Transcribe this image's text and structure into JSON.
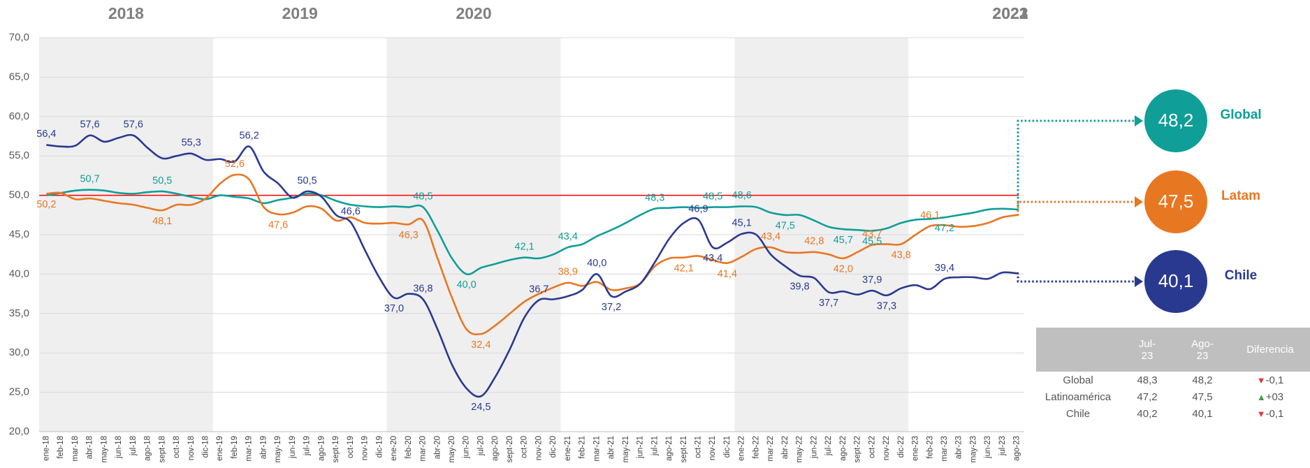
{
  "chart_data": {
    "type": "line",
    "years": [
      "2018",
      "2019",
      "2020",
      "2021",
      "2022",
      "2023"
    ],
    "categories": [
      "ene-18",
      "feb-18",
      "mar-18",
      "abr-18",
      "may-18",
      "jun-18",
      "jul-18",
      "ago-18",
      "sept-18",
      "oct-18",
      "nov-18",
      "dic-18",
      "ene-19",
      "feb-19",
      "mar-19",
      "abr-19",
      "may-19",
      "jun-19",
      "jul-19",
      "ago-19",
      "sept-19",
      "oct-19",
      "nov-19",
      "dic-19",
      "ene-20",
      "feb-20",
      "mar-20",
      "abr-20",
      "may-20",
      "jun-20",
      "jul-20",
      "ago-20",
      "sept-20",
      "oct-20",
      "nov-20",
      "dic-20",
      "ene-21",
      "feb-21",
      "mar-21",
      "abr-21",
      "may-21",
      "jun-21",
      "jul-21",
      "ago-21",
      "sept-21",
      "oct-21",
      "nov-21",
      "dic-21",
      "ene-22",
      "feb-22",
      "mar-22",
      "abr-22",
      "may-22",
      "jun-22",
      "jul-22",
      "ago-22",
      "sept-22",
      "oct-22",
      "nov-22",
      "dic-22",
      "ene-23",
      "feb-23",
      "mar-23",
      "abr-23",
      "may-23",
      "jun-23",
      "jul-23",
      "ago-23"
    ],
    "series": [
      {
        "name": "Global",
        "color": "#0f9e98",
        "values": [
          50.0,
          50.3,
          50.6,
          50.7,
          50.6,
          50.3,
          50.2,
          50.4,
          50.5,
          50.2,
          49.8,
          49.5,
          50.0,
          49.8,
          49.6,
          49.0,
          49.4,
          49.7,
          50.2,
          50.0,
          49.3,
          48.8,
          48.6,
          48.5,
          48.6,
          48.5,
          48.5,
          45.5,
          42.0,
          40.0,
          40.8,
          41.3,
          41.8,
          42.1,
          42.0,
          42.5,
          43.4,
          43.8,
          44.8,
          45.6,
          46.5,
          47.5,
          48.3,
          48.4,
          48.5,
          48.4,
          48.5,
          48.5,
          48.6,
          48.5,
          47.8,
          47.5,
          47.5,
          46.8,
          46.0,
          45.7,
          45.6,
          45.5,
          45.8,
          46.5,
          46.9,
          47.0,
          47.2,
          47.5,
          47.8,
          48.2,
          48.3,
          48.2
        ],
        "value_labels": [
          null,
          null,
          null,
          "50,7",
          null,
          null,
          null,
          null,
          "50,5",
          null,
          null,
          null,
          null,
          null,
          null,
          null,
          null,
          null,
          null,
          null,
          null,
          null,
          null,
          null,
          null,
          null,
          "48,5",
          null,
          null,
          "40,0",
          null,
          null,
          null,
          "42,1",
          null,
          null,
          "43,4",
          null,
          null,
          null,
          null,
          null,
          "48,3",
          null,
          null,
          null,
          "48,5",
          null,
          "48,6",
          null,
          null,
          "47,5",
          null,
          null,
          null,
          "45,7",
          null,
          "45,5",
          null,
          null,
          null,
          null,
          "47,2",
          null,
          null,
          null,
          null,
          null
        ]
      },
      {
        "name": "Latam",
        "color": "#e87722",
        "values": [
          50.2,
          50.3,
          49.5,
          49.6,
          49.3,
          49.0,
          48.8,
          48.4,
          48.1,
          48.8,
          48.8,
          49.6,
          51.5,
          52.6,
          52.0,
          48.5,
          47.6,
          47.8,
          48.6,
          48.3,
          46.8,
          47.2,
          46.5,
          46.4,
          46.5,
          46.3,
          46.8,
          42.0,
          37.0,
          33.0,
          32.4,
          33.5,
          35.0,
          36.5,
          37.5,
          38.3,
          38.9,
          38.5,
          39.0,
          38.0,
          38.2,
          38.8,
          41.0,
          42.0,
          42.1,
          42.3,
          41.8,
          41.4,
          42.2,
          43.2,
          43.4,
          42.8,
          42.7,
          42.8,
          42.5,
          42.0,
          42.8,
          43.7,
          43.8,
          43.8,
          45.0,
          46.1,
          46.2,
          46.0,
          46.1,
          46.5,
          47.2,
          47.5
        ],
        "value_labels": [
          "50,2",
          null,
          null,
          null,
          null,
          null,
          null,
          null,
          "48,1",
          null,
          null,
          null,
          null,
          "52,6",
          null,
          null,
          "47,6",
          null,
          null,
          null,
          null,
          null,
          null,
          null,
          null,
          "46,3",
          null,
          null,
          null,
          null,
          "32,4",
          null,
          null,
          null,
          null,
          null,
          "38,9",
          null,
          null,
          null,
          null,
          null,
          null,
          null,
          "42,1",
          null,
          null,
          "41,4",
          null,
          null,
          "43,4",
          null,
          null,
          "42,8",
          null,
          "42,0",
          null,
          "43,7",
          null,
          "43,8",
          null,
          "46,1",
          null,
          null,
          null,
          null,
          null,
          null
        ]
      },
      {
        "name": "Chile",
        "color": "#2a3990",
        "values": [
          56.4,
          56.2,
          56.3,
          57.6,
          56.8,
          57.3,
          57.6,
          56.0,
          54.7,
          55.0,
          55.3,
          54.5,
          54.6,
          54.3,
          56.2,
          53.0,
          51.5,
          49.7,
          50.5,
          49.8,
          47.5,
          46.6,
          43.0,
          39.5,
          37.0,
          37.5,
          36.8,
          33.0,
          28.5,
          25.5,
          24.5,
          27.0,
          30.5,
          34.5,
          36.7,
          36.8,
          37.2,
          38.0,
          40.0,
          37.2,
          37.8,
          38.8,
          41.5,
          44.5,
          46.5,
          46.9,
          43.4,
          44.0,
          45.1,
          45.0,
          42.5,
          41.0,
          39.8,
          39.5,
          37.7,
          37.8,
          37.4,
          37.9,
          37.3,
          38.2,
          38.6,
          38.1,
          39.4,
          39.6,
          39.6,
          39.4,
          40.2,
          40.1
        ],
        "value_labels": [
          "56,4",
          null,
          null,
          "57,6",
          null,
          null,
          "57,6",
          null,
          null,
          null,
          "55,3",
          null,
          null,
          null,
          "56,2",
          null,
          null,
          null,
          "50,5",
          null,
          null,
          "46,6",
          null,
          null,
          "37,0",
          null,
          "36,8",
          null,
          null,
          null,
          "24,5",
          null,
          null,
          null,
          "36,7",
          null,
          null,
          null,
          "40,0",
          "37,2",
          null,
          null,
          null,
          null,
          null,
          "46,9",
          "43,4",
          null,
          "45,1",
          null,
          null,
          null,
          "39,8",
          null,
          "37,7",
          null,
          null,
          "37,9",
          "37,3",
          null,
          null,
          null,
          "39,4",
          null,
          null,
          null,
          null,
          null
        ]
      }
    ],
    "reference_line": {
      "value": 50,
      "color": "#ff0000"
    },
    "ylim": [
      20,
      70
    ],
    "yticks": [
      {
        "value": 20,
        "label": "20,0"
      },
      {
        "value": 25,
        "label": "25,0"
      },
      {
        "value": 30,
        "label": "30,0"
      },
      {
        "value": 35,
        "label": "35,0"
      },
      {
        "value": 40,
        "label": "40,0"
      },
      {
        "value": 45,
        "label": "45,0"
      },
      {
        "value": 50,
        "label": "50,0"
      },
      {
        "value": 55,
        "label": "55,0"
      },
      {
        "value": 60,
        "label": "60,0"
      },
      {
        "value": 65,
        "label": "65,0"
      },
      {
        "value": 70,
        "label": "70,0"
      }
    ],
    "grid": true
  },
  "table": {
    "headers": [
      "Jul-23",
      "Ago-23",
      "Diferencia"
    ],
    "rows": [
      {
        "name": "Global",
        "jul": "48,3",
        "ago": "48,2",
        "diff": "-0,1",
        "trend": "down"
      },
      {
        "name": "Latinoamérica",
        "jul": "47,2",
        "ago": "47,5",
        "diff": "+03",
        "trend": "up"
      },
      {
        "name": "Chile",
        "jul": "40,2",
        "ago": "40,1",
        "diff": "-0,1",
        "trend": "down"
      }
    ]
  }
}
